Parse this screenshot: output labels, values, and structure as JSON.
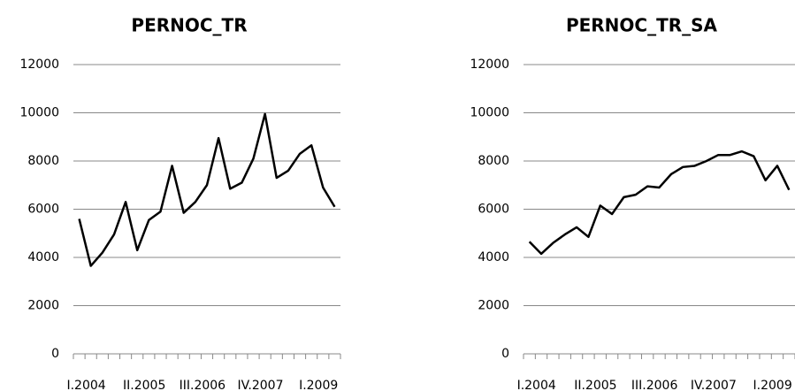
{
  "chart_data": [
    {
      "type": "line",
      "title": "PERNOC_TR",
      "categories": [
        "I.2004",
        null,
        null,
        null,
        null,
        "II.2005",
        null,
        null,
        null,
        null,
        "III.2006",
        null,
        null,
        null,
        null,
        "IV.2007",
        null,
        null,
        null,
        null,
        "I.2009",
        null,
        null
      ],
      "series": [
        {
          "color": "#000000",
          "values": [
            5600,
            3650,
            4200,
            4950,
            6300,
            4300,
            5550,
            5900,
            7800,
            5850,
            6300,
            7000,
            8950,
            6850,
            7100,
            8100,
            9950,
            7300,
            7600,
            8300,
            8650,
            6900,
            6100
          ]
        }
      ],
      "ylim": [
        0,
        12000
      ],
      "yticks": [
        0,
        2000,
        4000,
        6000,
        8000,
        10000,
        12000
      ],
      "grid": true
    },
    {
      "type": "line",
      "title": "PERNOC_TR_SA",
      "categories": [
        "I.2004",
        null,
        null,
        null,
        null,
        "II.2005",
        null,
        null,
        null,
        null,
        "III.2006",
        null,
        null,
        null,
        null,
        "IV.2007",
        null,
        null,
        null,
        null,
        "I.2009",
        null,
        null
      ],
      "series": [
        {
          "color": "#000000",
          "values": [
            4650,
            4150,
            4600,
            4950,
            5250,
            4850,
            6150,
            5800,
            6500,
            6600,
            6950,
            6900,
            7450,
            7750,
            7800,
            8000,
            8250,
            8250,
            8400,
            8200,
            7200,
            7800,
            6800
          ]
        }
      ],
      "ylim": [
        0,
        12000
      ],
      "yticks": [
        0,
        2000,
        4000,
        6000,
        8000,
        10000,
        12000
      ],
      "grid": true
    }
  ]
}
